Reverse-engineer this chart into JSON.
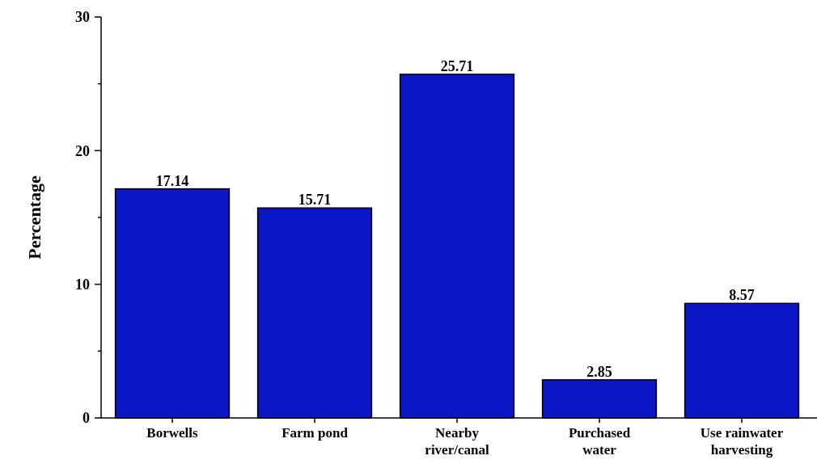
{
  "chart_data": {
    "type": "bar",
    "ylabel": "Percentage",
    "categories": [
      "Borwells",
      "Farm pond",
      "Nearby river/canal",
      "Purchased water",
      "Use rainwater harvesting"
    ],
    "values": [
      17.14,
      15.71,
      25.71,
      2.85,
      8.57
    ],
    "color": "#0b16c4",
    "data_labels": true,
    "ylim": [
      0,
      30
    ],
    "yticks": [
      0,
      {
        "value": 5,
        "label": null
      },
      10,
      {
        "value": 15,
        "label": null
      },
      20,
      {
        "value": 25,
        "label": null
      },
      30
    ],
    "grid": false
  }
}
